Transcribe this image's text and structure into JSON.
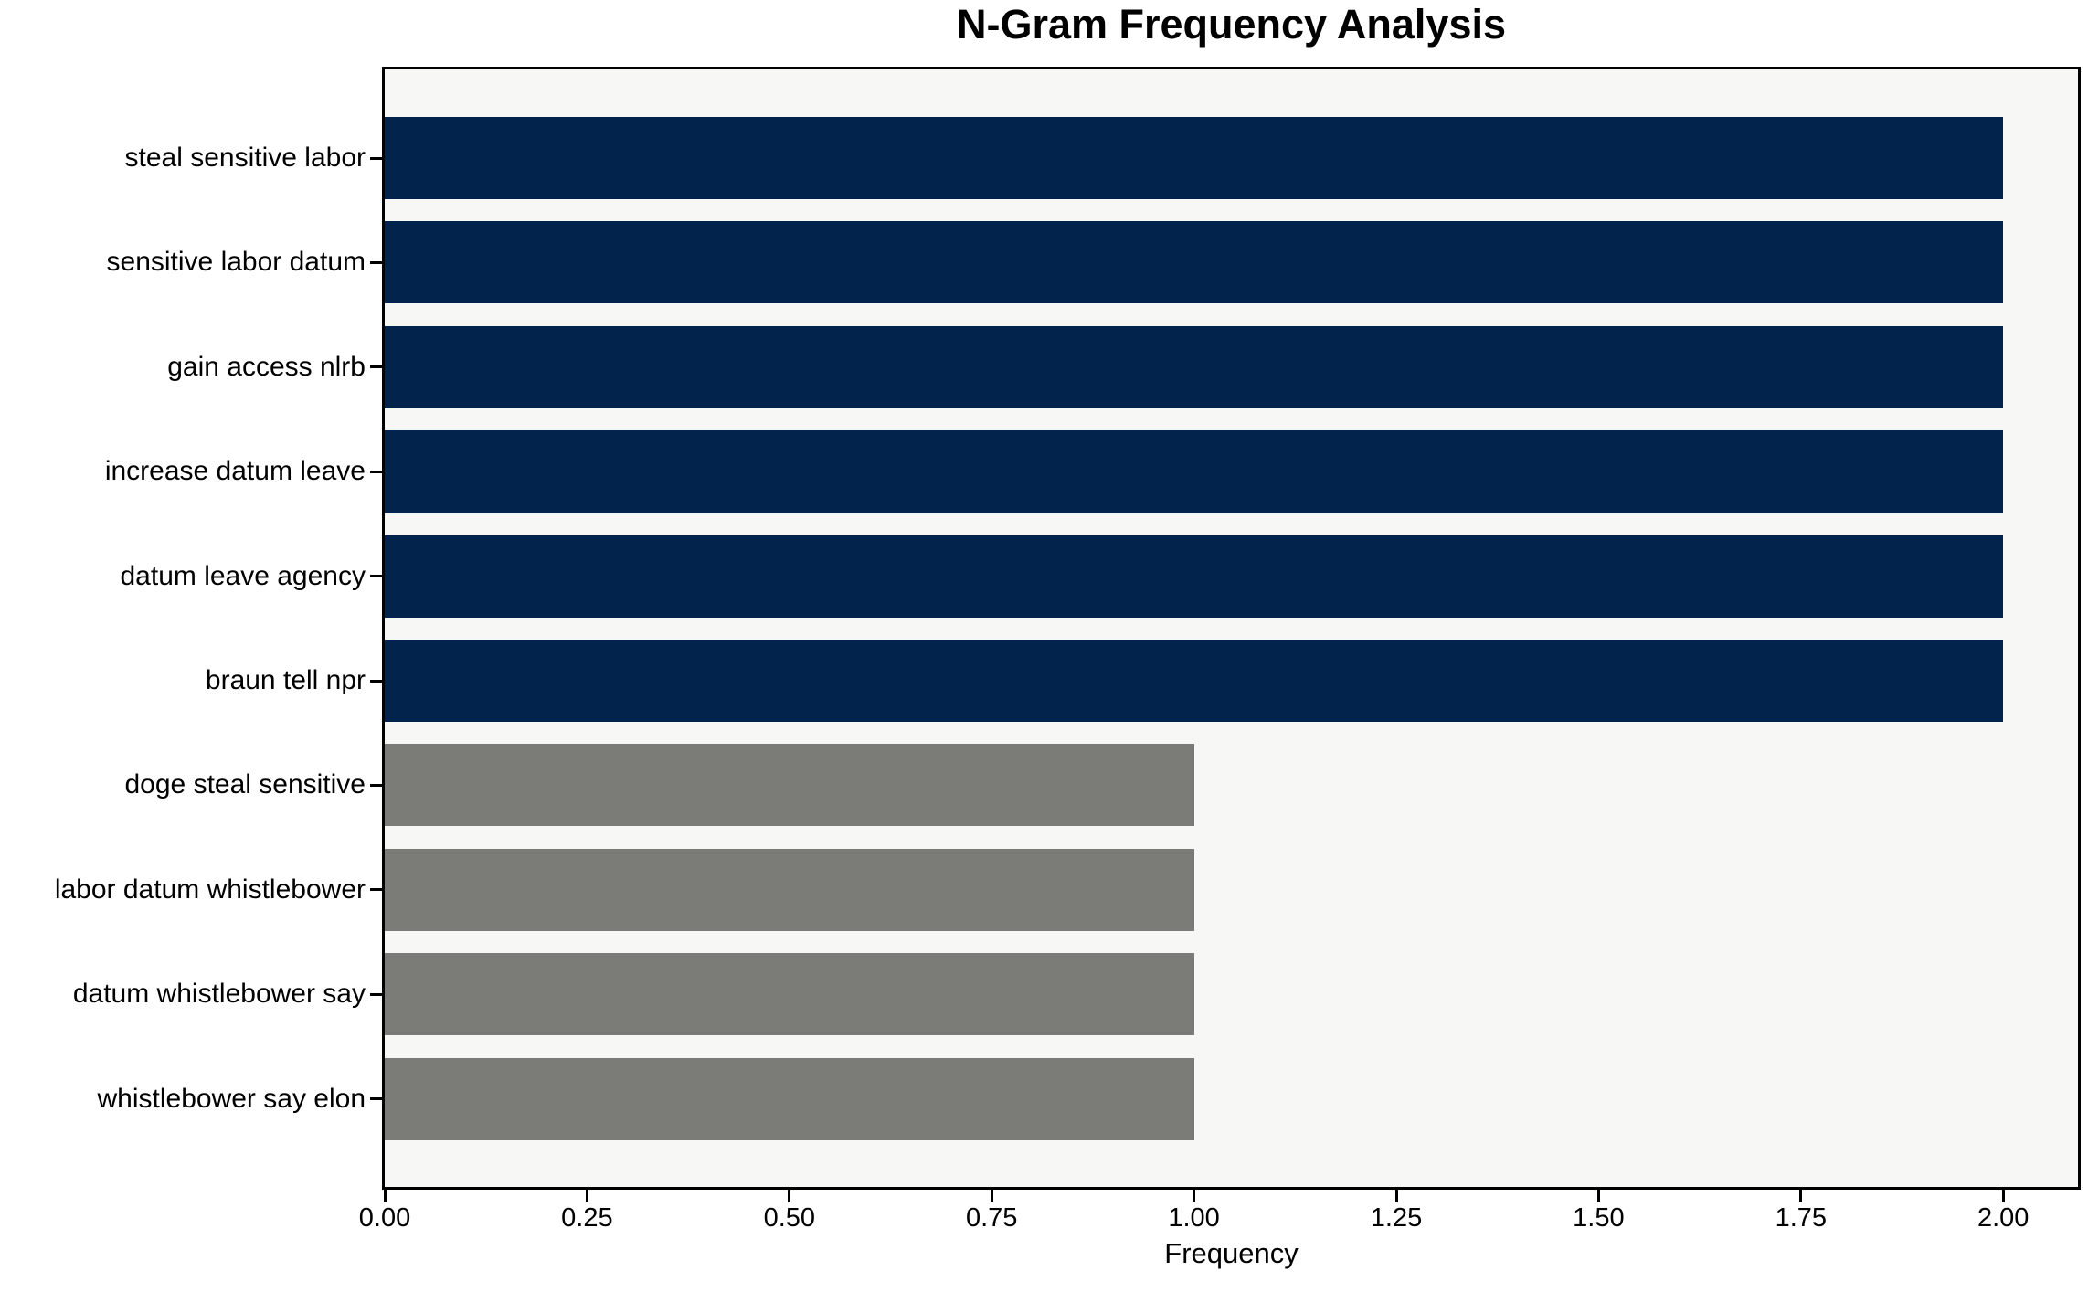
{
  "chart_data": {
    "type": "bar",
    "orientation": "horizontal",
    "title": "N-Gram Frequency Analysis",
    "xlabel": "Frequency",
    "ylabel": "",
    "categories": [
      "steal sensitive labor",
      "sensitive labor datum",
      "gain access nlrb",
      "increase datum leave",
      "datum leave agency",
      "braun tell npr",
      "doge steal sensitive",
      "labor datum whistlebower",
      "datum whistlebower say",
      "whistlebower say elon"
    ],
    "values": [
      2,
      2,
      2,
      2,
      2,
      2,
      1,
      1,
      1,
      1
    ],
    "bar_colors": [
      "#02234c",
      "#02234c",
      "#02234c",
      "#02234c",
      "#02234c",
      "#02234c",
      "#7b7b78",
      "#7b7b78",
      "#7b7b78",
      "#7b7b78"
    ],
    "xlim": [
      0.0,
      2.1
    ],
    "xticks": [
      0.0,
      0.25,
      0.5,
      0.75,
      1.0,
      1.25,
      1.5,
      1.75,
      2.0
    ],
    "xtick_labels": [
      "0.00",
      "0.25",
      "0.50",
      "0.75",
      "1.00",
      "1.25",
      "1.50",
      "1.75",
      "2.00"
    ],
    "grid": false,
    "legend": "none",
    "plot_background": "#f7f7f6",
    "figure_background": "#ffffff",
    "frame_color": "#000000"
  }
}
